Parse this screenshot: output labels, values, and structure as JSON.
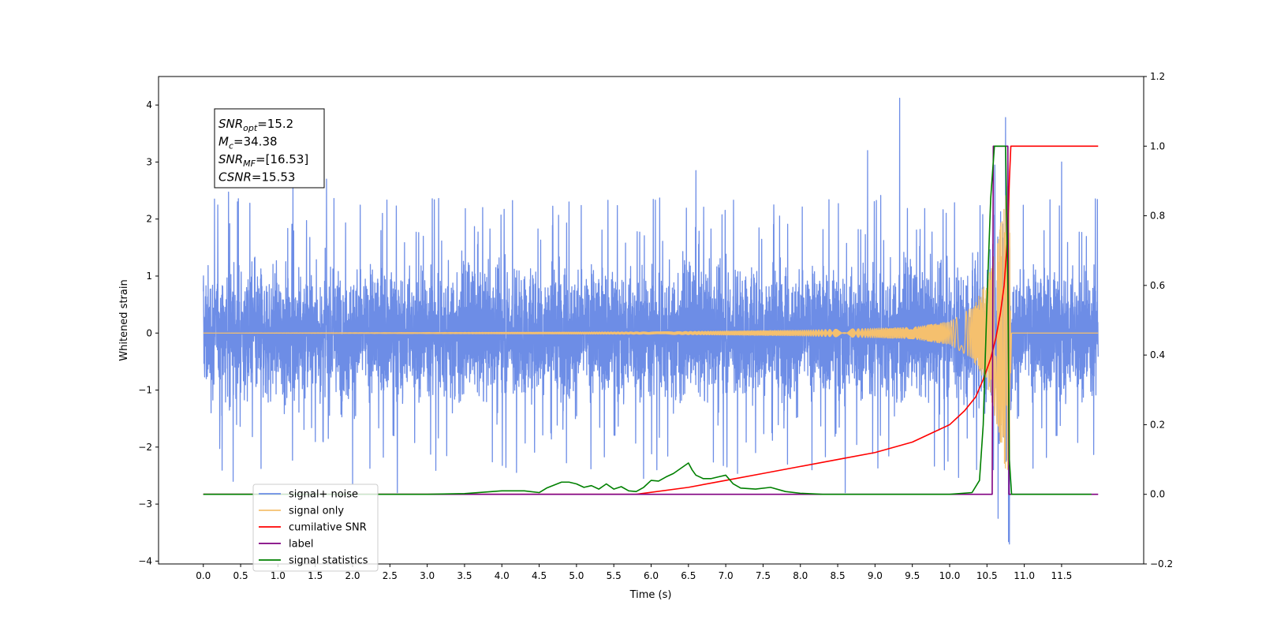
{
  "chart_data": {
    "type": "line",
    "xlabel": "Time (s)",
    "ylabel": "Whitened strain",
    "xlim": [
      -0.6,
      12.6
    ],
    "ylim": [
      -4.05,
      4.5
    ],
    "y2lim": [
      -0.2,
      1.2
    ],
    "x_ticks": [
      0.0,
      0.5,
      1.0,
      1.5,
      2.0,
      2.5,
      3.0,
      3.5,
      4.0,
      4.5,
      5.0,
      5.5,
      6.0,
      6.5,
      7.0,
      7.5,
      8.0,
      8.5,
      9.0,
      9.5,
      10.0,
      10.5,
      11.0,
      11.5
    ],
    "x_tick_labels": [
      "0.0",
      "0.5",
      "1.0",
      "1.5",
      "2.0",
      "2.5",
      "3.0",
      "3.5",
      "4.0",
      "4.5",
      "5.0",
      "5.5",
      "6.0",
      "6.5",
      "7.0",
      "7.5",
      "8.0",
      "8.5",
      "9.0",
      "9.5",
      "10.0",
      "10.5",
      "11.0",
      "11.5"
    ],
    "y_ticks": [
      -4,
      -3,
      -2,
      -1,
      0,
      1,
      2,
      3,
      4
    ],
    "y_tick_labels": [
      "−4",
      "−3",
      "−2",
      "−1",
      "0",
      "1",
      "2",
      "3",
      "4"
    ],
    "y2_ticks": [
      -0.2,
      0.0,
      0.2,
      0.4,
      0.6,
      0.8,
      1.0,
      1.2
    ],
    "y2_tick_labels": [
      "−0.2",
      "0.0",
      "0.2",
      "0.4",
      "0.6",
      "0.8",
      "1.0",
      "1.2"
    ],
    "grid": false,
    "legend_position": "bottom-left",
    "annotation": {
      "lines": [
        {
          "base": "SNR",
          "sub": "opt",
          "rest": "=15.2"
        },
        {
          "base": "M",
          "sub": "c",
          "rest": "=34.38"
        },
        {
          "base": "SNR",
          "sub": "MF",
          "rest": "=[16.53]"
        },
        {
          "base": "CSNR",
          "sub": "",
          "rest": "=15.53"
        }
      ]
    },
    "series": [
      {
        "name": "signal+ noise",
        "axis": "left",
        "color": "#6d8de6",
        "kind": "noise",
        "x_range": [
          0.0,
          11.99
        ],
        "typical_amplitude": 1.5,
        "peaks": [
          {
            "x": 0.15,
            "y": 2.35
          },
          {
            "x": 1.2,
            "y": 2.6
          },
          {
            "x": 1.65,
            "y": 2.7
          },
          {
            "x": 2.4,
            "y": 2.1
          },
          {
            "x": 4.9,
            "y": 2.3
          },
          {
            "x": 6.6,
            "y": 2.85
          },
          {
            "x": 8.9,
            "y": 3.2
          },
          {
            "x": 9.33,
            "y": 4.12
          },
          {
            "x": 10.75,
            "y": 3.78
          },
          {
            "x": 11.5,
            "y": 3.0
          },
          {
            "x": 0.4,
            "y": -2.6
          },
          {
            "x": 2.0,
            "y": -2.65
          },
          {
            "x": 2.6,
            "y": -2.8
          },
          {
            "x": 5.9,
            "y": -2.55
          },
          {
            "x": 8.6,
            "y": -2.8
          },
          {
            "x": 10.65,
            "y": -3.25
          },
          {
            "x": 10.8,
            "y": -3.7
          }
        ]
      },
      {
        "name": "signal only",
        "axis": "left",
        "color": "#f5c06e",
        "kind": "chirp",
        "amplitude_envelope": [
          [
            0.0,
            0.0
          ],
          [
            6.0,
            0.02
          ],
          [
            8.0,
            0.05
          ],
          [
            9.5,
            0.1
          ],
          [
            10.0,
            0.2
          ],
          [
            10.3,
            0.45
          ],
          [
            10.5,
            0.9
          ],
          [
            10.65,
            1.7
          ],
          [
            10.75,
            2.4
          ],
          [
            10.8,
            2.7
          ],
          [
            10.83,
            0.0
          ],
          [
            12.0,
            0.0
          ]
        ]
      },
      {
        "name": "cumilative SNR",
        "axis": "right",
        "color": "#ff0000",
        "x": [
          0.0,
          5.8,
          6.5,
          7.0,
          7.5,
          8.0,
          8.5,
          9.0,
          9.5,
          9.8,
          10.0,
          10.2,
          10.35,
          10.45,
          10.55,
          10.62,
          10.68,
          10.73,
          10.77,
          10.8,
          10.82,
          11.99
        ],
        "y": [
          0.0,
          0.0,
          0.02,
          0.04,
          0.06,
          0.08,
          0.1,
          0.12,
          0.15,
          0.18,
          0.2,
          0.24,
          0.28,
          0.33,
          0.39,
          0.45,
          0.52,
          0.6,
          0.72,
          0.9,
          1.0,
          1.0
        ]
      },
      {
        "name": "label",
        "axis": "right",
        "color": "#800080",
        "x": [
          0.0,
          10.57,
          10.585,
          10.78,
          10.795,
          11.99
        ],
        "y": [
          0.0,
          0.0,
          1.0,
          1.0,
          0.0,
          0.0
        ]
      },
      {
        "name": "signal statistics",
        "axis": "right",
        "color": "#008000",
        "x": [
          0.0,
          3.0,
          3.5,
          4.0,
          4.3,
          4.5,
          4.6,
          4.8,
          4.9,
          5.0,
          5.1,
          5.2,
          5.3,
          5.4,
          5.5,
          5.6,
          5.7,
          5.8,
          5.9,
          6.0,
          6.1,
          6.2,
          6.3,
          6.4,
          6.5,
          6.55,
          6.6,
          6.7,
          6.8,
          6.9,
          7.0,
          7.1,
          7.2,
          7.4,
          7.6,
          7.8,
          8.0,
          8.3,
          9.0,
          10.0,
          10.3,
          10.4,
          10.45,
          10.5,
          10.55,
          10.6,
          10.65,
          10.7,
          10.75,
          10.78,
          10.8,
          10.83,
          11.9
        ],
        "y": [
          0.0,
          0.0,
          0.002,
          0.01,
          0.01,
          0.005,
          0.018,
          0.035,
          0.035,
          0.03,
          0.02,
          0.025,
          0.015,
          0.03,
          0.015,
          0.022,
          0.01,
          0.008,
          0.02,
          0.04,
          0.038,
          0.05,
          0.06,
          0.075,
          0.09,
          0.07,
          0.055,
          0.045,
          0.045,
          0.05,
          0.055,
          0.03,
          0.018,
          0.015,
          0.02,
          0.008,
          0.003,
          0.0,
          0.0,
          0.0,
          0.005,
          0.04,
          0.2,
          0.55,
          0.85,
          1.0,
          1.0,
          1.0,
          1.0,
          0.6,
          0.1,
          0.0,
          0.0
        ]
      }
    ],
    "legend": [
      {
        "label": "signal+ noise",
        "color": "#6d8de6"
      },
      {
        "label": "signal only",
        "color": "#f5c06e"
      },
      {
        "label": "cumilative SNR",
        "color": "#ff0000"
      },
      {
        "label": "label",
        "color": "#800080"
      },
      {
        "label": "signal statistics",
        "color": "#008000"
      }
    ]
  }
}
